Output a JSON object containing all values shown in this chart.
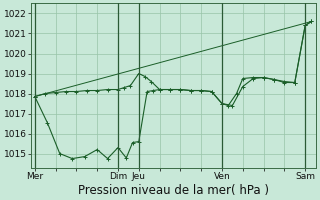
{
  "background_color": "#c8e8d8",
  "grid_color": "#98c4a8",
  "line_color": "#1a5e28",
  "vline_color": "#2a5a35",
  "title": "Pression niveau de la mer( hPa )",
  "title_fontsize": 8.5,
  "tick_fontsize": 6.5,
  "ylim": [
    1014.3,
    1022.5
  ],
  "yticks": [
    1015,
    1016,
    1017,
    1018,
    1019,
    1020,
    1021,
    1022
  ],
  "xlim": [
    -0.2,
    13.5
  ],
  "xtick_labels": [
    "Mer",
    "",
    "",
    "",
    "Dim",
    "Jeu",
    "",
    "",
    "",
    "Ven",
    "",
    "",
    "",
    "Sam"
  ],
  "xtick_pos": [
    0,
    1,
    2,
    3,
    4,
    5,
    6,
    7,
    8,
    9,
    10,
    11,
    12,
    13
  ],
  "vlines": [
    0,
    4,
    5,
    9,
    13
  ],
  "series1_x": [
    0,
    0.5,
    1.0,
    1.5,
    2.0,
    2.5,
    3.0,
    3.5,
    4.0,
    4.3,
    4.6,
    5.0,
    5.3,
    5.6,
    6.0,
    6.5,
    7.0,
    7.5,
    8.0,
    8.5,
    9.0,
    9.3,
    9.7,
    10.0,
    10.5,
    11.0,
    11.5,
    12.0,
    12.5,
    13.0,
    13.3
  ],
  "series1_y": [
    1017.85,
    1018.0,
    1018.05,
    1018.1,
    1018.1,
    1018.15,
    1018.15,
    1018.2,
    1018.2,
    1018.3,
    1018.4,
    1019.0,
    1018.85,
    1018.6,
    1018.2,
    1018.2,
    1018.2,
    1018.15,
    1018.15,
    1018.1,
    1017.5,
    1017.4,
    1018.0,
    1018.75,
    1018.8,
    1018.8,
    1018.7,
    1018.6,
    1018.55,
    1021.4,
    1021.6
  ],
  "series2_x": [
    0,
    0.6,
    1.2,
    1.8,
    2.4,
    3.0,
    3.5,
    4.0,
    4.4,
    4.7,
    5.0,
    5.4,
    5.7,
    6.0,
    6.5,
    7.0,
    7.5,
    8.0,
    8.5,
    9.0,
    9.5,
    10.0,
    10.5,
    11.0,
    11.5,
    12.0,
    12.5,
    13.0,
    13.3
  ],
  "series2_y": [
    1017.85,
    1016.55,
    1015.0,
    1014.75,
    1014.85,
    1015.2,
    1014.75,
    1015.3,
    1014.78,
    1015.55,
    1015.6,
    1018.1,
    1018.15,
    1018.2,
    1018.2,
    1018.2,
    1018.15,
    1018.15,
    1018.1,
    1017.5,
    1017.4,
    1018.35,
    1018.75,
    1018.8,
    1018.7,
    1018.55,
    1018.55,
    1021.4,
    1021.6
  ],
  "trend_x": [
    0,
    13.3
  ],
  "trend_y": [
    1017.85,
    1021.6
  ]
}
